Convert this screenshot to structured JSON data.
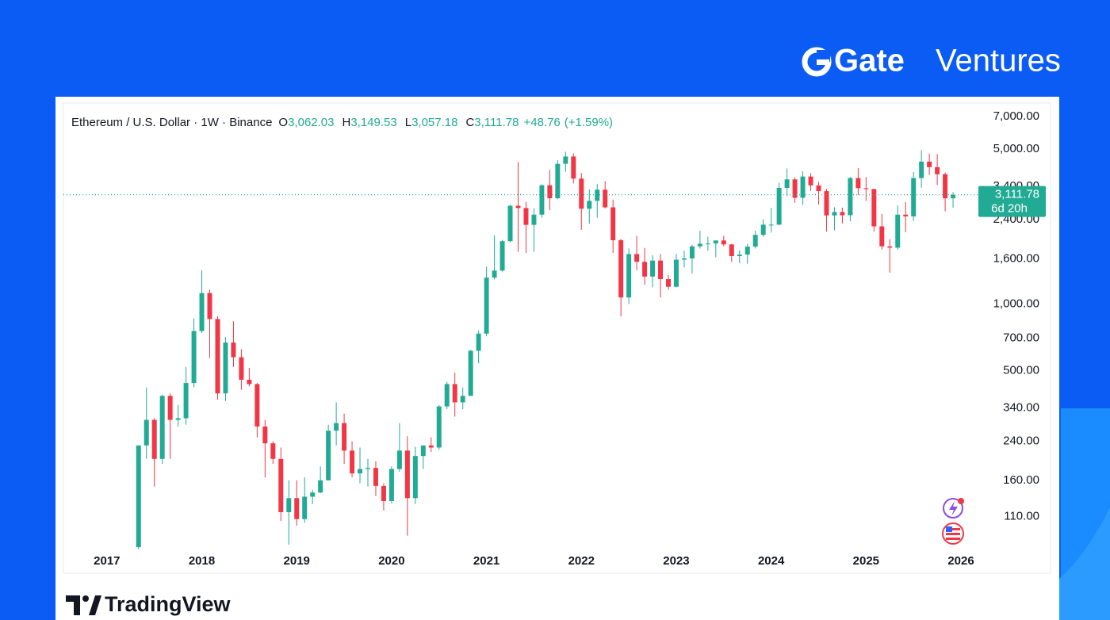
{
  "brand": {
    "name": "Gate",
    "suffix": "Ventures"
  },
  "footer": {
    "logo": "TradingView"
  },
  "chart_data": {
    "type": "candlestick",
    "title": "Ethereum / U.S. Dollar · 1W · Binance",
    "header": {
      "open_key": "O",
      "open": {
        "value": 3062.03,
        "label": "3,062.03"
      },
      "high_key": "H",
      "high": {
        "value": 3149.53,
        "label": "3,149.53"
      },
      "low_key": "L",
      "low": {
        "value": 3057.18,
        "label": "3,057.18"
      },
      "close_key": "C",
      "close": {
        "value": 3111.78,
        "label": "3,111.78"
      },
      "change": {
        "value": 48.76,
        "label": "+48.76"
      },
      "change_percent": {
        "value": 1.59,
        "label": "(+1.59%)"
      }
    },
    "last_price": {
      "value": 3111.78,
      "label": "3,111.78"
    },
    "countdown": "6d 20h",
    "up_color": "#22ab94",
    "down_color": "#f23645",
    "log_scale": true,
    "ylim": [
      80,
      8000
    ],
    "yticks": [
      {
        "value": 7000,
        "label": "7,000.00"
      },
      {
        "value": 5000,
        "label": "5,000.00"
      },
      {
        "value": 3400,
        "label": "3,400.00"
      },
      {
        "value": 2400,
        "label": "2,400.00"
      },
      {
        "value": 1600,
        "label": "1,600.00"
      },
      {
        "value": 1000,
        "label": "1,000.00"
      },
      {
        "value": 700,
        "label": "700.00"
      },
      {
        "value": 500,
        "label": "500.00"
      },
      {
        "value": 340,
        "label": "340.00"
      },
      {
        "value": 240,
        "label": "240.00"
      },
      {
        "value": 160,
        "label": "160.00"
      },
      {
        "value": 110,
        "label": "110.00"
      }
    ],
    "xlim": [
      -9.5,
      105.3
    ],
    "xticks": [
      {
        "value": -4,
        "label": "2017"
      },
      {
        "value": 8,
        "label": "2018"
      },
      {
        "value": 20,
        "label": "2019"
      },
      {
        "value": 32,
        "label": "2020"
      },
      {
        "value": 44,
        "label": "2021"
      },
      {
        "value": 56,
        "label": "2022"
      },
      {
        "value": 68,
        "label": "2023"
      },
      {
        "value": 80,
        "label": "2024"
      },
      {
        "value": 92,
        "label": "2025"
      },
      {
        "value": 104,
        "label": "2026"
      }
    ],
    "open": [
      80,
      230,
      300,
      200,
      385,
      300,
      305,
      440,
      755,
      1120,
      855,
      395,
      670,
      575,
      455,
      435,
      280,
      235,
      200,
      115,
      133,
      107,
      135,
      141,
      160,
      268,
      290,
      218,
      172,
      180,
      182,
      151,
      129,
      180,
      218,
      133,
      206,
      230,
      225,
      345,
      435,
      360,
      385,
      615,
      735,
      1315,
      1415,
      1920,
      2775,
      2710,
      2275,
      2530,
      3435,
      3000,
      4290,
      4630,
      3680,
      2690,
      2920,
      3280,
      2730,
      1940,
      1070,
      1680,
      1550,
      1330,
      1570,
      1295,
      1196,
      1585,
      1605,
      1820,
      1870,
      1875,
      1935,
      1857,
      1645,
      1670,
      1815,
      2050,
      2280,
      2280,
      3340,
      3650,
      3015,
      3760,
      3430,
      3230,
      2510,
      2600,
      2515,
      3700,
      3330,
      3300,
      2240,
      1820,
      1795,
      2530,
      2485,
      3700,
      4390,
      4145,
      3850,
      3000
    ],
    "high": [
      230,
      420,
      305,
      390,
      395,
      350,
      520,
      860,
      1420,
      1160,
      880,
      710,
      835,
      625,
      515,
      440,
      300,
      240,
      225,
      160,
      160,
      165,
      145,
      185,
      285,
      360,
      320,
      240,
      225,
      200,
      195,
      155,
      185,
      290,
      253,
      227,
      220,
      250,
      350,
      445,
      490,
      420,
      620,
      760,
      1475,
      2040,
      1945,
      2800,
      4370,
      2890,
      2700,
      3470,
      4030,
      4460,
      4870,
      4780,
      3900,
      3290,
      3480,
      3580,
      2960,
      1970,
      1780,
      2030,
      1790,
      1660,
      1680,
      1350,
      1680,
      1740,
      1850,
      2140,
      2010,
      1930,
      2030,
      1870,
      1750,
      1865,
      2140,
      2415,
      2715,
      3520,
      4090,
      3730,
      3970,
      3890,
      3560,
      3310,
      2730,
      2720,
      3740,
      4110,
      3740,
      3320,
      2550,
      1960,
      2790,
      2880,
      3940,
      4950,
      4770,
      4750,
      3920,
      3200
    ],
    "low": [
      78,
      200,
      150,
      190,
      200,
      280,
      285,
      420,
      740,
      570,
      370,
      365,
      520,
      410,
      425,
      250,
      165,
      190,
      105,
      82,
      100,
      103,
      125,
      140,
      160,
      230,
      190,
      165,
      155,
      150,
      136,
      117,
      126,
      175,
      90,
      125,
      180,
      215,
      220,
      335,
      310,
      335,
      385,
      540,
      715,
      1290,
      1400,
      1900,
      1720,
      1700,
      1720,
      2450,
      2650,
      2970,
      3950,
      3500,
      2160,
      2300,
      2450,
      2700,
      1700,
      880,
      1000,
      1420,
      1220,
      1190,
      1070,
      1160,
      1190,
      1460,
      1370,
      1780,
      1740,
      1625,
      1820,
      1550,
      1530,
      1520,
      1780,
      2010,
      2100,
      2270,
      3060,
      2860,
      2800,
      3240,
      2810,
      2120,
      2150,
      2310,
      2360,
      3100,
      2920,
      2120,
      1760,
      1385,
      1760,
      2110,
      2370,
      3350,
      3820,
      3440,
      2620,
      2720
    ],
    "close": [
      230,
      300,
      200,
      385,
      300,
      305,
      440,
      755,
      1120,
      855,
      395,
      670,
      575,
      455,
      435,
      280,
      235,
      200,
      115,
      133,
      107,
      135,
      141,
      160,
      268,
      290,
      218,
      172,
      180,
      182,
      151,
      129,
      180,
      218,
      133,
      206,
      230,
      225,
      345,
      435,
      360,
      385,
      615,
      735,
      1315,
      1415,
      1920,
      2775,
      2710,
      2275,
      2530,
      3435,
      3000,
      4290,
      4630,
      3680,
      2690,
      2920,
      3280,
      2730,
      1940,
      1070,
      1680,
      1550,
      1330,
      1570,
      1295,
      1196,
      1585,
      1605,
      1820,
      1870,
      1875,
      1935,
      1857,
      1645,
      1670,
      1815,
      2050,
      2280,
      2280,
      3340,
      3650,
      3015,
      3760,
      3430,
      3230,
      2510,
      2600,
      2515,
      3700,
      3330,
      3300,
      2240,
      1820,
      1795,
      2530,
      2485,
      3700,
      4390,
      4145,
      3850,
      3000,
      3110
    ]
  }
}
